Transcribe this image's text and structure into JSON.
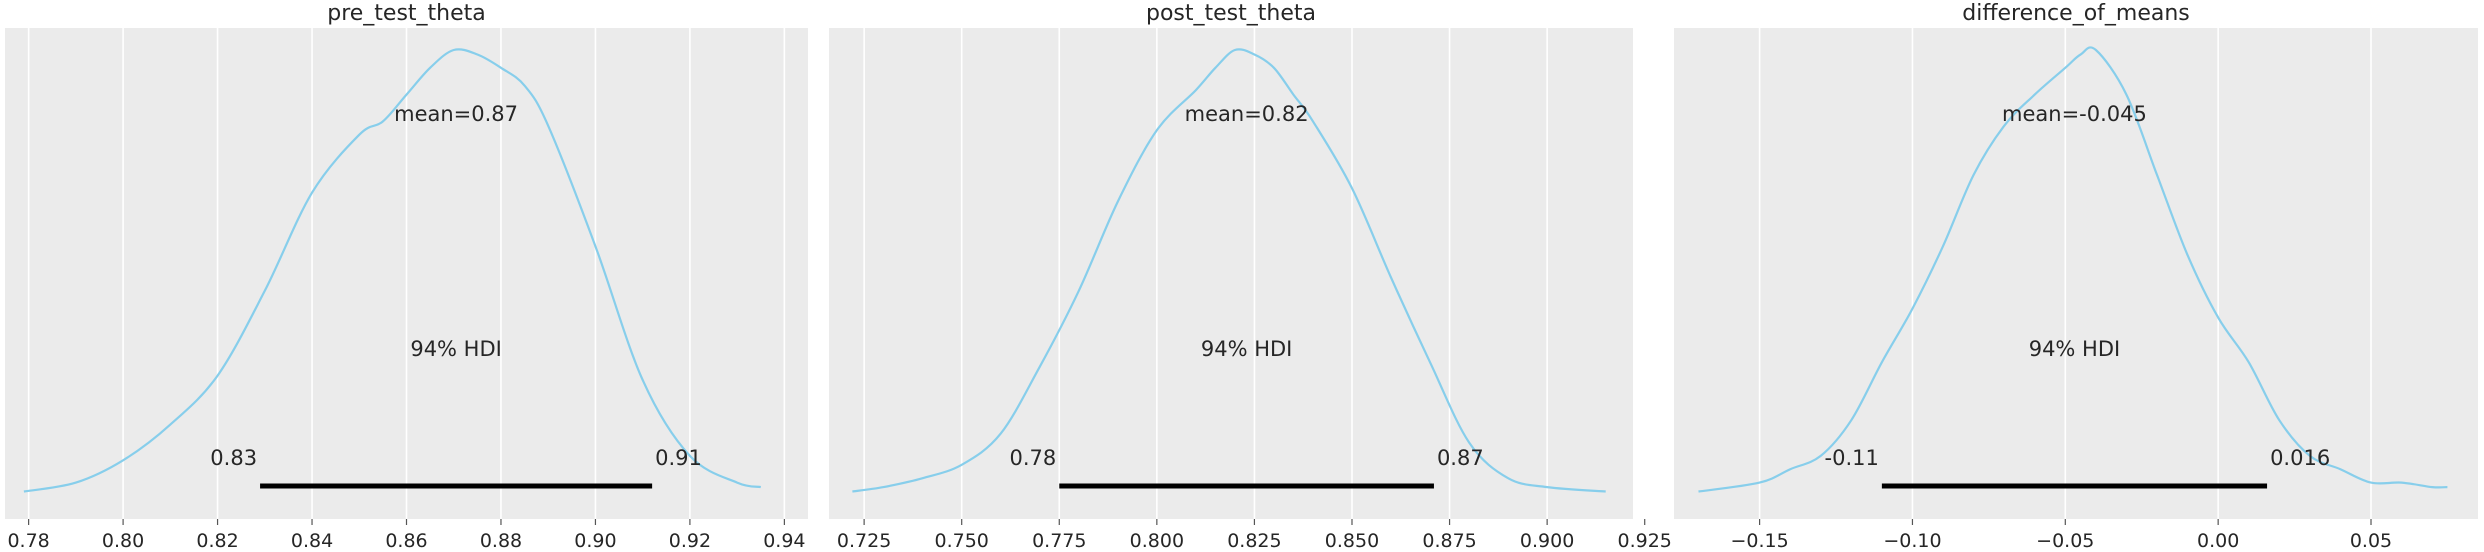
{
  "figure": {
    "panel_bg": "#ebebeb",
    "grid_color": "#ffffff",
    "curve_color": "#87ceeb",
    "hdi_color": "#000000"
  },
  "chart_data": [
    {
      "type": "line",
      "title": "pre_test_theta",
      "xlabel": "",
      "ylabel": "",
      "xlim": [
        0.775,
        0.945
      ],
      "ticks": [
        0.78,
        0.8,
        0.82,
        0.84,
        0.86,
        0.88,
        0.9,
        0.92,
        0.94
      ],
      "tick_labels": [
        "0.78",
        "0.80",
        "0.82",
        "0.84",
        "0.86",
        "0.88",
        "0.90",
        "0.92",
        "0.94"
      ],
      "grid": true,
      "x": [
        0.779,
        0.79,
        0.8,
        0.81,
        0.82,
        0.83,
        0.84,
        0.85,
        0.855,
        0.86,
        0.865,
        0.87,
        0.875,
        0.88,
        0.885,
        0.89,
        0.9,
        0.91,
        0.92,
        0.93,
        0.935
      ],
      "density": [
        0.01,
        0.03,
        0.08,
        0.16,
        0.27,
        0.46,
        0.68,
        0.81,
        0.84,
        0.9,
        0.96,
        1.0,
        0.99,
        0.96,
        0.92,
        0.83,
        0.56,
        0.26,
        0.09,
        0.03,
        0.02
      ],
      "mean_label": "mean=0.87",
      "hdi_prob_label": "94% HDI",
      "hdi": [
        0.829,
        0.912
      ],
      "hdi_lower_label": "0.83",
      "hdi_upper_label": "0.91"
    },
    {
      "type": "line",
      "title": "post_test_theta",
      "xlabel": "",
      "ylabel": "",
      "xlim": [
        0.716,
        0.922
      ],
      "ticks": [
        0.725,
        0.75,
        0.775,
        0.8,
        0.825,
        0.85,
        0.875,
        0.9,
        0.925
      ],
      "tick_labels": [
        "0.725",
        "0.750",
        "0.775",
        "0.800",
        "0.825",
        "0.850",
        "0.875",
        "0.900",
        "0.925"
      ],
      "grid": true,
      "x": [
        0.722,
        0.73,
        0.74,
        0.75,
        0.76,
        0.77,
        0.78,
        0.79,
        0.8,
        0.81,
        0.815,
        0.82,
        0.825,
        0.83,
        0.835,
        0.84,
        0.85,
        0.86,
        0.87,
        0.88,
        0.89,
        0.9,
        0.915
      ],
      "density": [
        0.01,
        0.02,
        0.04,
        0.07,
        0.14,
        0.29,
        0.46,
        0.66,
        0.82,
        0.91,
        0.96,
        1.0,
        0.99,
        0.96,
        0.9,
        0.84,
        0.69,
        0.49,
        0.3,
        0.12,
        0.04,
        0.02,
        0.01
      ],
      "mean_label": "mean=0.82",
      "hdi_prob_label": "94% HDI",
      "hdi": [
        0.775,
        0.871
      ],
      "hdi_lower_label": "0.78",
      "hdi_upper_label": "0.87"
    },
    {
      "type": "line",
      "title": "difference_of_means",
      "xlabel": "",
      "ylabel": "",
      "xlim": [
        -0.178,
        0.085
      ],
      "ticks": [
        -0.15,
        -0.1,
        -0.05,
        0.0,
        0.05
      ],
      "tick_labels": [
        "−0.15",
        "−0.10",
        "−0.05",
        "0.00",
        "0.05"
      ],
      "grid": true,
      "x": [
        -0.17,
        -0.15,
        -0.14,
        -0.13,
        -0.12,
        -0.11,
        -0.1,
        -0.09,
        -0.08,
        -0.07,
        -0.06,
        -0.05,
        -0.045,
        -0.04,
        -0.03,
        -0.02,
        -0.01,
        0.0,
        0.01,
        0.02,
        0.03,
        0.04,
        0.05,
        0.06,
        0.07,
        0.075
      ],
      "density": [
        0.01,
        0.03,
        0.06,
        0.09,
        0.17,
        0.3,
        0.42,
        0.56,
        0.72,
        0.83,
        0.9,
        0.96,
        0.99,
        1.0,
        0.9,
        0.72,
        0.54,
        0.4,
        0.3,
        0.17,
        0.09,
        0.06,
        0.03,
        0.03,
        0.02,
        0.02
      ],
      "mean_label": "mean=-0.045",
      "hdi_prob_label": "94% HDI",
      "hdi": [
        -0.11,
        0.016
      ],
      "hdi_lower_label": "-0.11",
      "hdi_upper_label": "0.016"
    }
  ]
}
